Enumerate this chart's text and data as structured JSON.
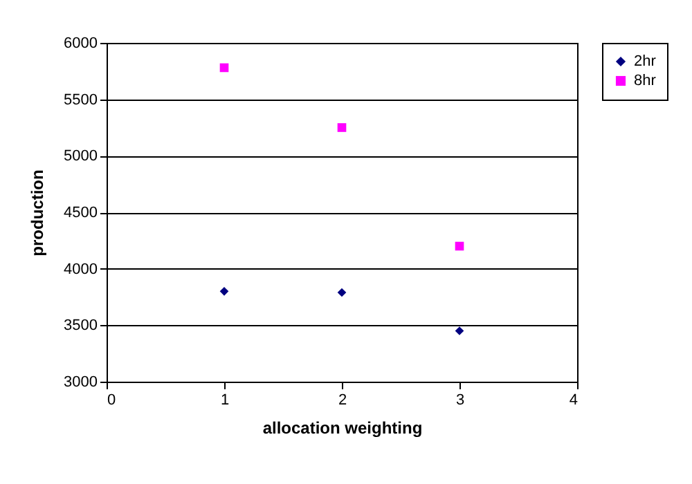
{
  "chart_data": {
    "type": "scatter",
    "xlabel": "allocation weighting",
    "ylabel": "production",
    "x": [
      1,
      2,
      3
    ],
    "series": [
      {
        "name": "2hr",
        "color": "#000080",
        "marker": "diamond",
        "values": [
          3800,
          3790,
          3450
        ]
      },
      {
        "name": "8hr",
        "color": "#ff00ff",
        "marker": "square",
        "values": [
          5780,
          5250,
          4200
        ]
      }
    ],
    "xlim": [
      0,
      4
    ],
    "xticks": [
      0,
      1,
      2,
      3,
      4
    ],
    "ylim": [
      3000,
      6000
    ],
    "yticks": [
      3000,
      3500,
      4000,
      4500,
      5000,
      5500,
      6000
    ],
    "grid": "y",
    "legend": "right"
  }
}
